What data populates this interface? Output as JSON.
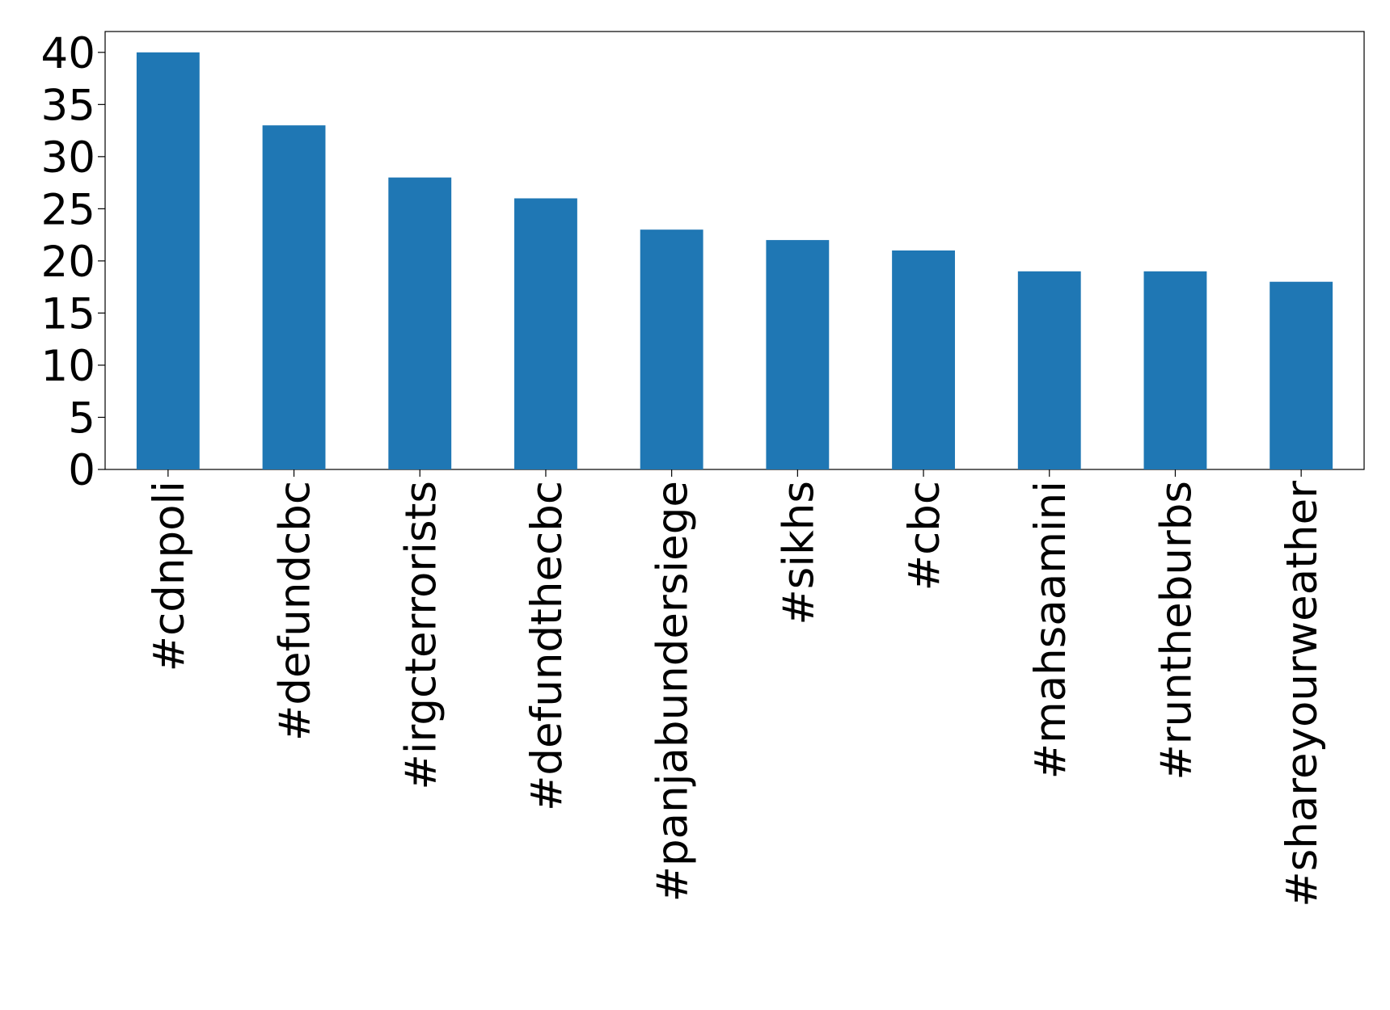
{
  "chart_data": {
    "type": "bar",
    "categories": [
      "#cdnpoli",
      "#defundcbc",
      "#irgcterrorists",
      "#defundthecbc",
      "#panjabundersiege",
      "#sikhs",
      "#cbc",
      "#mahsaamini",
      "#runtheburbs",
      "#shareyourweather"
    ],
    "values": [
      40,
      33,
      28,
      26,
      23,
      22,
      21,
      19,
      19,
      18
    ],
    "color": "#1f77b4",
    "ylim": [
      0,
      42
    ],
    "yticks": [
      0,
      5,
      10,
      15,
      20,
      25,
      30,
      35,
      40
    ],
    "grid": false
  }
}
